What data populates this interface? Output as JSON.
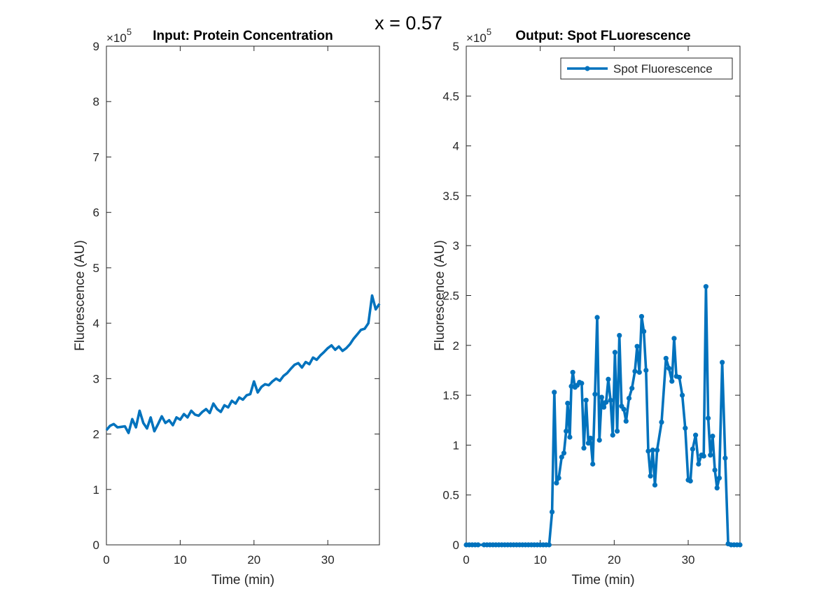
{
  "figure": {
    "suptitle": "x = 0.57",
    "line_color": "#0072BD"
  },
  "chart_data": [
    {
      "type": "line",
      "title": "Input: Protein Concentration",
      "xlabel": "Time (min)",
      "ylabel": "Fluorescence (AU)",
      "exponent_label": "×10",
      "exponent_power": "5",
      "xlim": [
        0,
        37
      ],
      "ylim": [
        0,
        9
      ],
      "xticks": [
        0,
        10,
        20,
        30
      ],
      "yticks": [
        0,
        1,
        2,
        3,
        4,
        5,
        6,
        7,
        8,
        9
      ],
      "grid": false,
      "legend": null,
      "series": [
        {
          "markers": false,
          "x": [
            0,
            0.5,
            1,
            1.5,
            2,
            2.5,
            3,
            3.5,
            4,
            4.5,
            5,
            5.5,
            6,
            6.5,
            7,
            7.5,
            8,
            8.5,
            9,
            9.5,
            10,
            10.5,
            11,
            11.5,
            12,
            12.5,
            13,
            13.5,
            14,
            14.5,
            15,
            15.5,
            16,
            16.5,
            17,
            17.5,
            18,
            18.5,
            19,
            19.5,
            20,
            20.5,
            21,
            21.5,
            22,
            22.5,
            23,
            23.5,
            24,
            24.5,
            25,
            25.5,
            26,
            26.5,
            27,
            27.5,
            28,
            28.5,
            29,
            29.5,
            30,
            30.5,
            31,
            31.5,
            32,
            32.5,
            33,
            33.5,
            34,
            34.5,
            35,
            35.5,
            36,
            36.5,
            37
          ],
          "values": [
            2.07,
            2.15,
            2.18,
            2.12,
            2.13,
            2.14,
            2.02,
            2.27,
            2.12,
            2.42,
            2.2,
            2.1,
            2.3,
            2.05,
            2.18,
            2.32,
            2.2,
            2.25,
            2.16,
            2.3,
            2.26,
            2.36,
            2.3,
            2.42,
            2.35,
            2.33,
            2.4,
            2.45,
            2.38,
            2.55,
            2.45,
            2.4,
            2.52,
            2.48,
            2.6,
            2.55,
            2.66,
            2.62,
            2.7,
            2.72,
            2.95,
            2.75,
            2.85,
            2.9,
            2.88,
            2.95,
            3.0,
            2.96,
            3.05,
            3.1,
            3.18,
            3.25,
            3.28,
            3.2,
            3.3,
            3.26,
            3.38,
            3.34,
            3.42,
            3.48,
            3.55,
            3.6,
            3.52,
            3.58,
            3.5,
            3.55,
            3.62,
            3.72,
            3.8,
            3.88,
            3.9,
            4.0,
            4.5,
            4.25,
            4.35
          ]
        }
      ]
    },
    {
      "type": "line",
      "title": "Output: Spot FLuorescence",
      "xlabel": "Time (min)",
      "ylabel": "Fluorescence (AU)",
      "exponent_label": "×10",
      "exponent_power": "5",
      "xlim": [
        0,
        37
      ],
      "ylim": [
        0,
        5
      ],
      "xticks": [
        0,
        10,
        20,
        30
      ],
      "yticks": [
        0,
        0.5,
        1,
        1.5,
        2,
        2.5,
        3,
        3.5,
        4,
        4.5,
        5
      ],
      "grid": false,
      "legend": "top-right",
      "series": [
        {
          "name": "Spot Fluorescence",
          "markers": true,
          "x": [
            0,
            0.4,
            0.8,
            1.2,
            1.6,
            2.4,
            2.8,
            3.2,
            3.6,
            4.0,
            4.4,
            4.8,
            5.2,
            5.6,
            6.0,
            6.4,
            6.8,
            7.2,
            7.6,
            8.0,
            8.4,
            8.8,
            9.2,
            9.6,
            10.0,
            10.4,
            10.8,
            11.2,
            11.6,
            11.9,
            12.2,
            12.5,
            12.9,
            13.2,
            13.5,
            13.7,
            14.0,
            14.2,
            14.4,
            14.7,
            15.0,
            15.3,
            15.6,
            15.9,
            16.2,
            16.5,
            16.8,
            17.1,
            17.4,
            17.7,
            18.0,
            18.3,
            18.6,
            18.9,
            19.2,
            19.5,
            19.8,
            20.1,
            20.4,
            20.7,
            21.0,
            21.3,
            21.6,
            22.0,
            22.4,
            22.8,
            23.1,
            23.4,
            23.7,
            24.0,
            24.3,
            24.6,
            24.9,
            25.2,
            25.5,
            25.8,
            26.4,
            27.0,
            27.4,
            27.8,
            28.1,
            28.4,
            28.8,
            29.2,
            29.6,
            30.0,
            30.3,
            30.6,
            31.0,
            31.4,
            31.8,
            32.1,
            32.4,
            32.7,
            33.0,
            33.3,
            33.6,
            33.9,
            34.2,
            34.6,
            35.0,
            35.4,
            35.8,
            36.2,
            36.6,
            37.0
          ],
          "values": [
            0,
            0,
            0,
            0,
            0,
            0,
            0,
            0,
            0,
            0,
            0,
            0,
            0,
            0,
            0,
            0,
            0,
            0,
            0,
            0,
            0,
            0,
            0,
            0,
            0,
            0,
            0,
            0,
            0.33,
            1.53,
            0.62,
            0.67,
            0.88,
            0.92,
            1.14,
            1.42,
            1.08,
            1.59,
            1.73,
            1.58,
            1.6,
            1.63,
            1.62,
            0.97,
            1.45,
            1.02,
            1.07,
            0.81,
            1.51,
            2.28,
            1.05,
            1.48,
            1.38,
            1.43,
            1.66,
            1.45,
            1.1,
            1.93,
            1.14,
            2.1,
            1.39,
            1.36,
            1.24,
            1.47,
            1.57,
            1.74,
            1.99,
            1.73,
            2.29,
            2.14,
            1.75,
            0.94,
            0.69,
            0.95,
            0.6,
            0.95,
            1.23,
            1.87,
            1.77,
            1.64,
            2.07,
            1.69,
            1.68,
            1.5,
            1.17,
            0.65,
            0.64,
            0.96,
            1.1,
            0.81,
            0.9,
            0.89,
            2.59,
            1.27,
            0.9,
            1.09,
            0.75,
            0.57,
            0.67,
            1.83,
            0.87,
            0.01,
            0,
            0,
            0,
            0
          ]
        }
      ]
    }
  ]
}
